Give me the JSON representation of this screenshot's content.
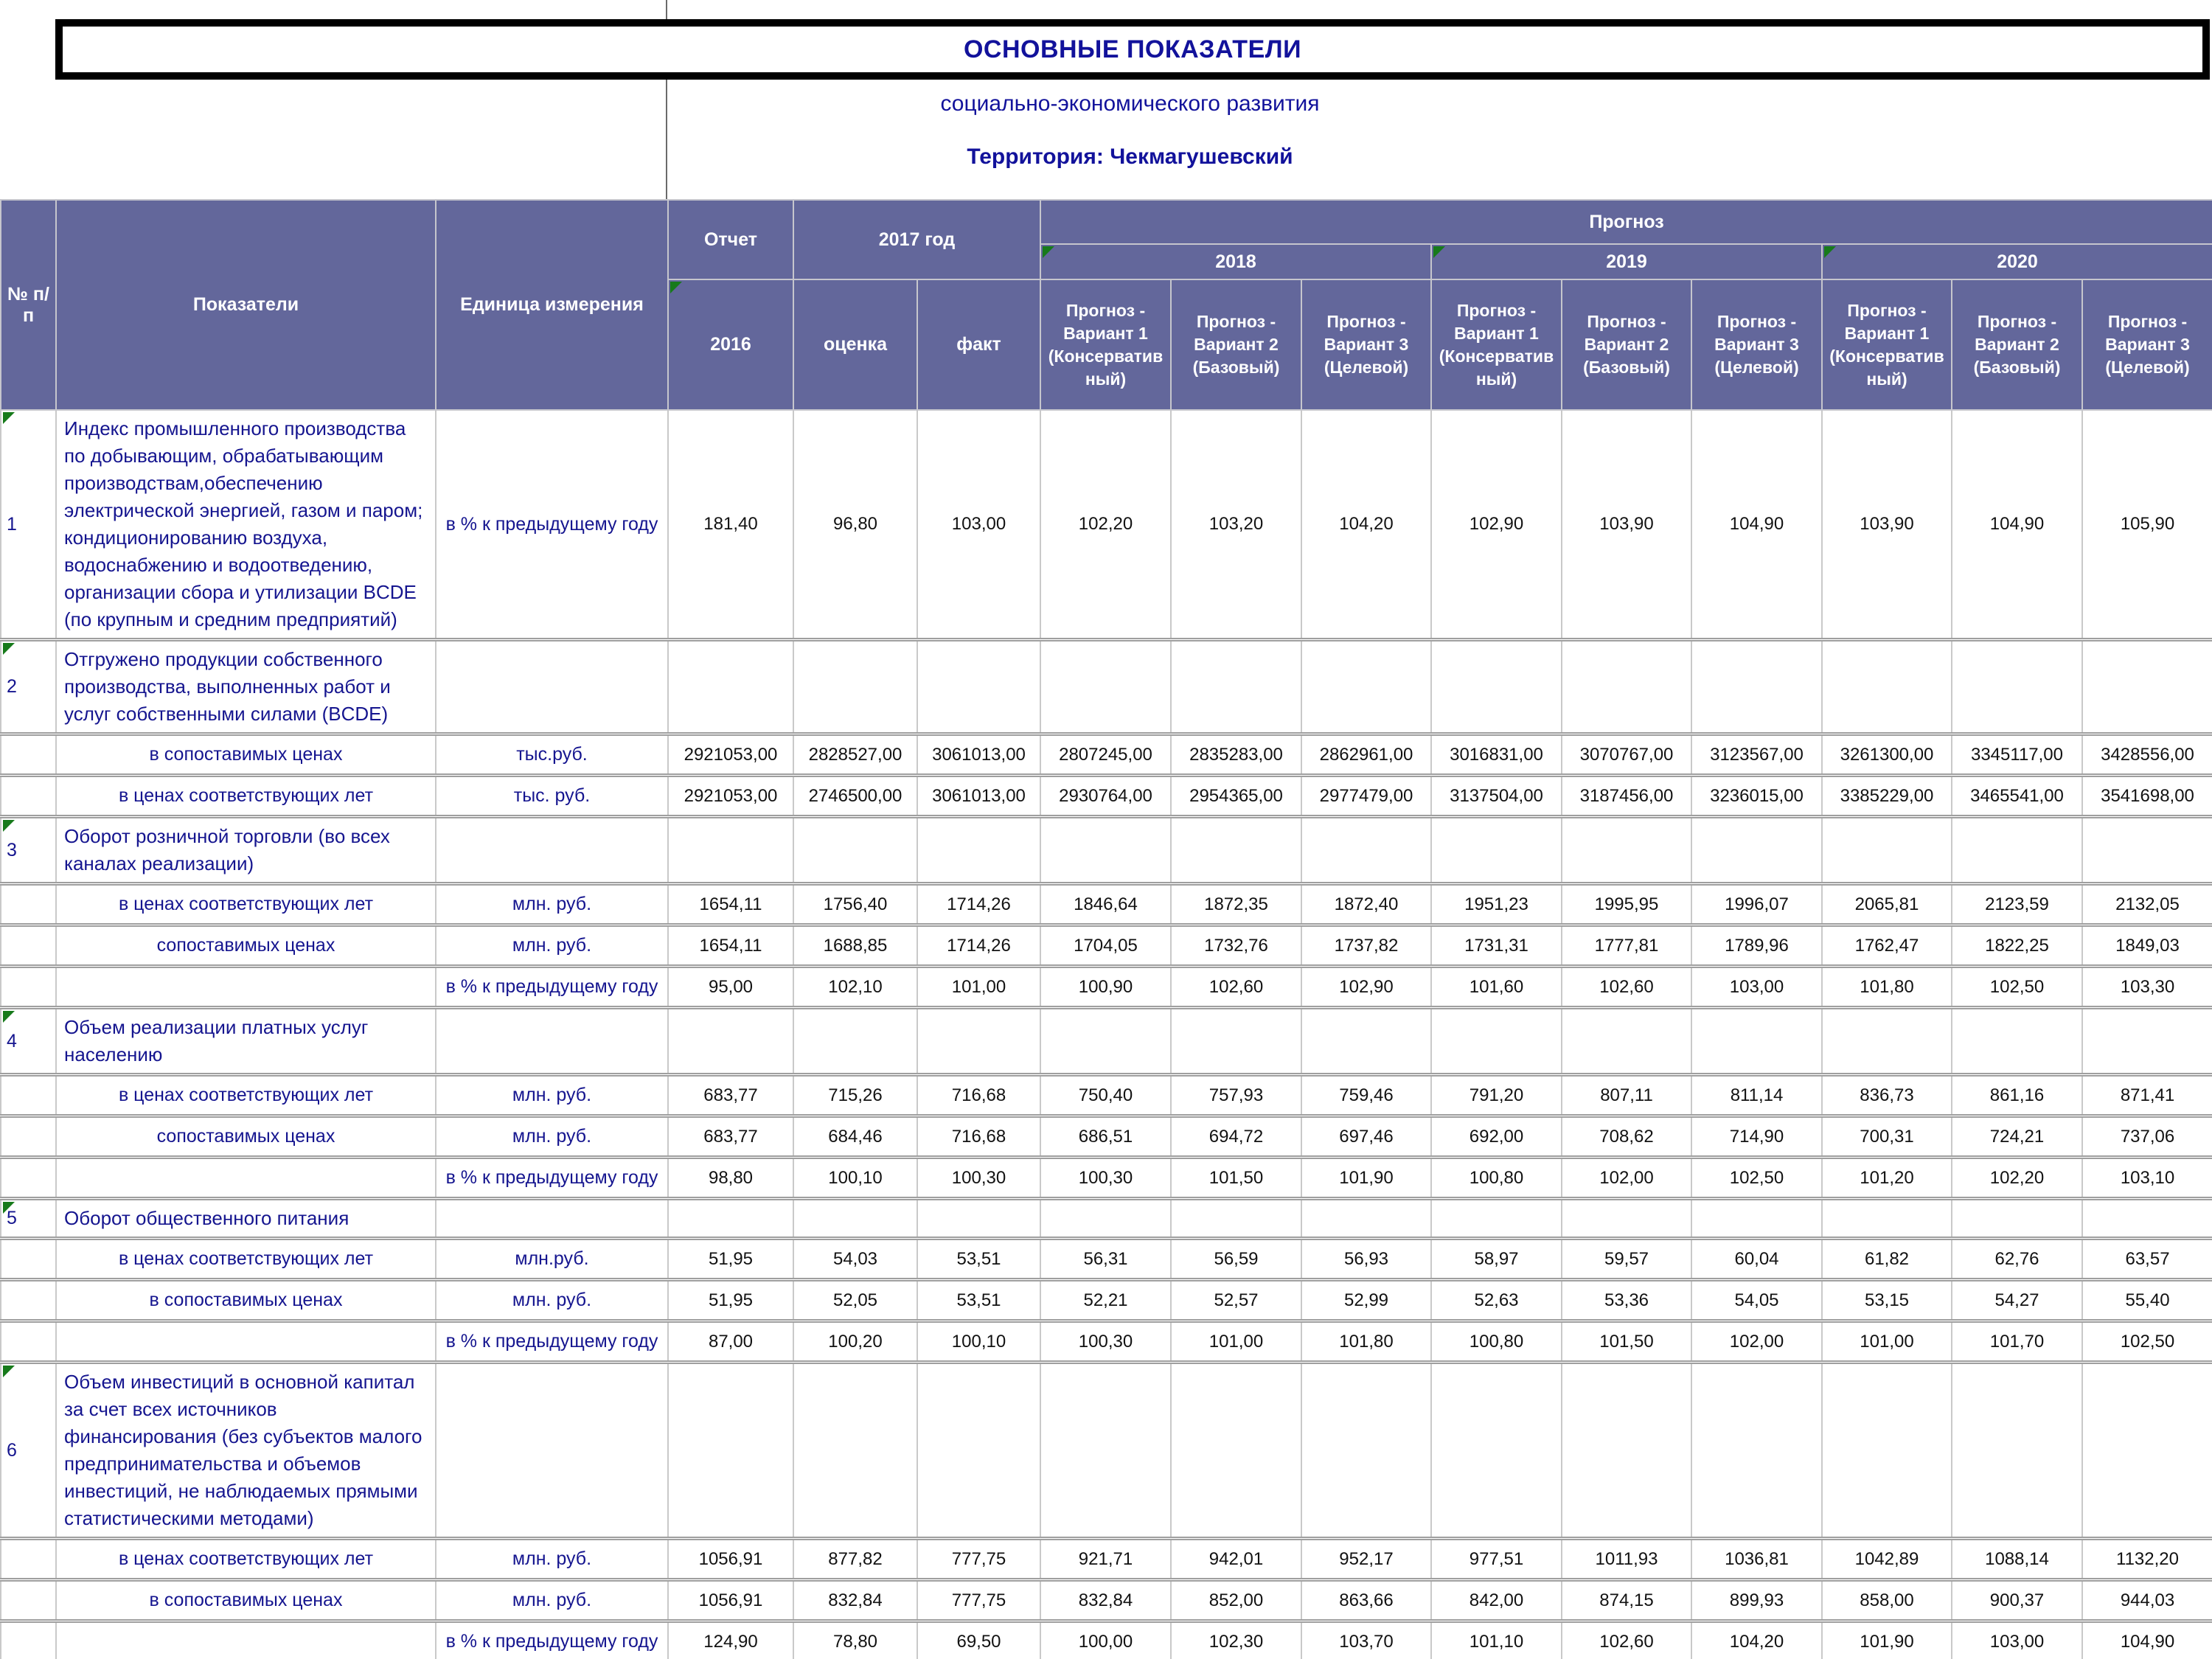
{
  "titles": {
    "main": "ОСНОВНЫЕ ПОКАЗАТЕЛИ",
    "sub": "социально-экономического развития",
    "territory": "Территория: Чекмагушевский"
  },
  "header": {
    "num": "№ п/п",
    "indicators": "Показатели",
    "unit": "Единица измерения",
    "report": "Отчет",
    "report_year": "2016",
    "year2017": "2017  год",
    "estimate": "оценка",
    "fact": "факт",
    "forecast": "Прогноз",
    "years": [
      "2018",
      "2019",
      "2020"
    ],
    "variants": [
      "Прогноз - Вариант 1 (Консервативный)",
      "Прогноз - Вариант 2 (Базовый)",
      "Прогноз - Вариант 3 (Целевой)"
    ]
  },
  "sections": [
    {
      "num": "1",
      "name": "Индекс промышленного производства по добывающим, обрабатывающим производствам,обеспечению электрической энергией, газом и паром; кондиционированию воздуха, водоснабжению и водоотведению, организации сбора и утилизации BCDE (по крупным и средним предприятий)",
      "unit": "в % к предыдущему году",
      "values": [
        "181,40",
        "96,80",
        "103,00",
        "102,20",
        "103,20",
        "104,20",
        "102,90",
        "103,90",
        "104,90",
        "103,90",
        "104,90",
        "105,90"
      ],
      "subrows": []
    },
    {
      "num": "2",
      "name": "Отгружено продукции собственного производства, выполненных работ и услуг собственными силами (BCDE)",
      "unit": "",
      "values": null,
      "subrows": [
        {
          "label": "в сопоставимых ценах",
          "unit": "тыс.руб.",
          "values": [
            "2921053,00",
            "2828527,00",
            "3061013,00",
            "2807245,00",
            "2835283,00",
            "2862961,00",
            "3016831,00",
            "3070767,00",
            "3123567,00",
            "3261300,00",
            "3345117,00",
            "3428556,00"
          ]
        },
        {
          "label": "в ценах соответствующих лет",
          "unit": "тыс. руб.",
          "values": [
            "2921053,00",
            "2746500,00",
            "3061013,00",
            "2930764,00",
            "2954365,00",
            "2977479,00",
            "3137504,00",
            "3187456,00",
            "3236015,00",
            "3385229,00",
            "3465541,00",
            "3541698,00"
          ]
        }
      ]
    },
    {
      "num": "3",
      "name": "Оборот розничной торговли (во всех каналах реализации)",
      "unit": "",
      "values": null,
      "subrows": [
        {
          "label": "в ценах соответствующих лет",
          "unit": "млн. руб.",
          "values": [
            "1654,11",
            "1756,40",
            "1714,26",
            "1846,64",
            "1872,35",
            "1872,40",
            "1951,23",
            "1995,95",
            "1996,07",
            "2065,81",
            "2123,59",
            "2132,05"
          ]
        },
        {
          "label": "сопоставимых ценах",
          "unit": "млн. руб.",
          "values": [
            "1654,11",
            "1688,85",
            "1714,26",
            "1704,05",
            "1732,76",
            "1737,82",
            "1731,31",
            "1777,81",
            "1789,96",
            "1762,47",
            "1822,25",
            "1849,03"
          ]
        },
        {
          "label": "",
          "unit": "в % к предыдущему году",
          "values": [
            "95,00",
            "102,10",
            "101,00",
            "100,90",
            "102,60",
            "102,90",
            "101,60",
            "102,60",
            "103,00",
            "101,80",
            "102,50",
            "103,30"
          ]
        }
      ]
    },
    {
      "num": "4",
      "name": "Объем реализации платных услуг населению",
      "unit": "",
      "values": null,
      "subrows": [
        {
          "label": "в ценах соответствующих лет",
          "unit": "млн. руб.",
          "values": [
            "683,77",
            "715,26",
            "716,68",
            "750,40",
            "757,93",
            "759,46",
            "791,20",
            "807,11",
            "811,14",
            "836,73",
            "861,16",
            "871,41"
          ]
        },
        {
          "label": "сопоставимых ценах",
          "unit": "млн. руб.",
          "values": [
            "683,77",
            "684,46",
            "716,68",
            "686,51",
            "694,72",
            "697,46",
            "692,00",
            "708,62",
            "714,90",
            "700,31",
            "724,21",
            "737,06"
          ]
        },
        {
          "label": "",
          "unit": "в % к предыдущему году",
          "values": [
            "98,80",
            "100,10",
            "100,30",
            "100,30",
            "101,50",
            "101,90",
            "100,80",
            "102,00",
            "102,50",
            "101,20",
            "102,20",
            "103,10"
          ]
        }
      ]
    },
    {
      "num": "5",
      "name": "Оборот общественного питания",
      "unit": "",
      "values": null,
      "subrows": [
        {
          "label": "в ценах соответствующих лет",
          "unit": "млн.руб.",
          "values": [
            "51,95",
            "54,03",
            "53,51",
            "56,31",
            "56,59",
            "56,93",
            "58,97",
            "59,57",
            "60,04",
            "61,82",
            "62,76",
            "63,57"
          ]
        },
        {
          "label": "в сопоставимых ценах",
          "unit": "млн. руб.",
          "values": [
            "51,95",
            "52,05",
            "53,51",
            "52,21",
            "52,57",
            "52,99",
            "52,63",
            "53,36",
            "54,05",
            "53,15",
            "54,27",
            "55,40"
          ]
        },
        {
          "label": "",
          "unit": "в % к предыдущему году",
          "values": [
            "87,00",
            "100,20",
            "100,10",
            "100,30",
            "101,00",
            "101,80",
            "100,80",
            "101,50",
            "102,00",
            "101,00",
            "101,70",
            "102,50"
          ]
        }
      ]
    },
    {
      "num": "6",
      "name": "Объем инвестиций в основной капитал за счет всех источников финансирования (без субъектов малого предпринимательства и объемов инвестиций, не наблюдаемых прямыми статистическими методами)",
      "unit": "",
      "values": null,
      "subrows": [
        {
          "label": "в ценах соответствующих лет",
          "unit": "млн. руб.",
          "values": [
            "1056,91",
            "877,82",
            "777,75",
            "921,71",
            "942,01",
            "952,17",
            "977,51",
            "1011,93",
            "1036,81",
            "1042,89",
            "1088,14",
            "1132,20"
          ]
        },
        {
          "label": "в сопоставимых ценах",
          "unit": "млн. руб.",
          "values": [
            "1056,91",
            "832,84",
            "777,75",
            "832,84",
            "852,00",
            "863,66",
            "842,00",
            "874,15",
            "899,93",
            "858,00",
            "900,37",
            "944,03"
          ]
        },
        {
          "label": "",
          "unit": "в % к предыдущему году",
          "values": [
            "124,90",
            "78,80",
            "69,50",
            "100,00",
            "102,30",
            "103,70",
            "101,10",
            "102,60",
            "104,20",
            "101,90",
            "103,00",
            "104,90"
          ]
        }
      ]
    }
  ]
}
